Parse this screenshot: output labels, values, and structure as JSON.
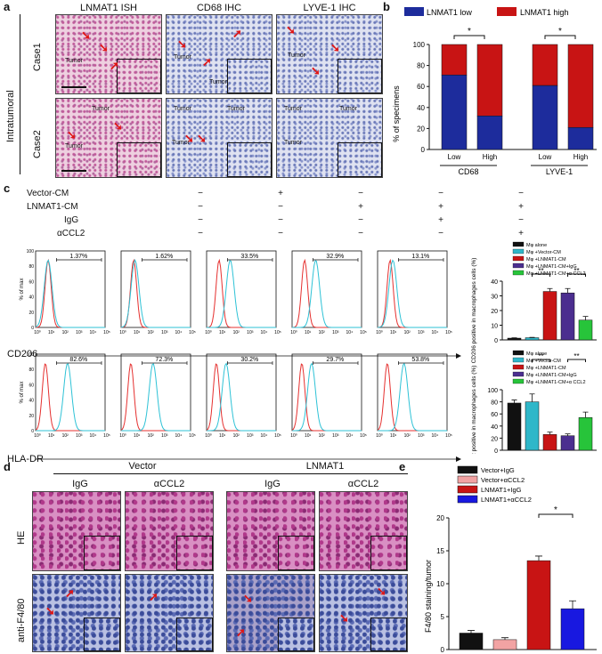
{
  "panel_labels": {
    "a": "a",
    "b": "b",
    "c": "c",
    "d": "d",
    "e": "e"
  },
  "panel_a": {
    "col_headers": [
      "LNMAT1 ISH",
      "CD68 IHC",
      "LYVE-1 IHC"
    ],
    "side_label": "Intratumoral",
    "rows": [
      "Case1",
      "Case2"
    ],
    "tumor_label": "Tumor"
  },
  "panel_b": {
    "legend": [
      "LNMAT1 low",
      "LNMAT1 high"
    ],
    "ylabel": "% of specimens",
    "yticks": [
      "0",
      "20",
      "40",
      "60",
      "80",
      "100"
    ],
    "xticks": [
      "Low",
      "High",
      "Low",
      "High"
    ],
    "groups": [
      "CD68",
      "LYVE-1"
    ],
    "sig": [
      "*",
      "*"
    ]
  },
  "panel_c": {
    "conditions": [
      "Vector-CM",
      "LNMAT1-CM",
      "IgG",
      "αCCL2"
    ],
    "signs": [
      [
        "−",
        "+",
        "−",
        "−",
        "−"
      ],
      [
        "−",
        "−",
        "+",
        "+",
        "+"
      ],
      [
        "−",
        "−",
        "−",
        "+",
        "−"
      ],
      [
        "−",
        "−",
        "−",
        "−",
        "+"
      ]
    ],
    "row1_label": "CD206",
    "row2_label": "HLA-DR",
    "pct_row1": [
      "1.37%",
      "1.62%",
      "33.5%",
      "32.9%",
      "13.1%"
    ],
    "pct_row2": [
      "82.6%",
      "72.3%",
      "30.2%",
      "29.7%",
      "53.8%"
    ],
    "hist_ylabel": "% of max",
    "hist_yticks": [
      "0",
      "20",
      "40",
      "60",
      "80",
      "100"
    ],
    "hist_xticks": [
      "10⁰",
      "10¹",
      "10²",
      "10³",
      "10⁴",
      "10⁵"
    ],
    "bar_legend": [
      "Mφ alone",
      "Mφ +Vector-CM",
      "Mφ +LNMAT1-CM",
      "Mφ +LNMAT1-CM+IgG",
      "Mφ +LNMAT1-CM+α CCL2"
    ],
    "bar1_ylabel": "CD206 positive in macrophages cells (%)",
    "bar2_ylabel": "HLA-DR positive in macrophages cells (%)",
    "bar1_yticks": [
      "0",
      "10",
      "20",
      "30",
      "40"
    ],
    "bar2_yticks": [
      "0",
      "20",
      "40",
      "60",
      "80",
      "100"
    ],
    "sig": [
      "**",
      "**"
    ]
  },
  "panel_d": {
    "group_headers": [
      "Vector",
      "LNMAT1"
    ],
    "sub_headers": [
      "IgG",
      "αCCL2",
      "IgG",
      "αCCL2"
    ],
    "row_labels": [
      "HE",
      "anti-F4/80"
    ]
  },
  "panel_e": {
    "legend": [
      "Vector+IgG",
      "Vector+αCCL2",
      "LNMAT1+IgG",
      "LNMAT1+αCCL2"
    ],
    "ylabel": "F4/80 staining/tumor",
    "yticks": [
      "0",
      "5",
      "10",
      "15",
      "20"
    ],
    "sig": "*"
  },
  "colors": {
    "blue": "#1d2c9c",
    "red": "#c81414",
    "black": "#111111",
    "cyan": "#2fb7c9",
    "green": "#27c43a",
    "pink": "#f2a3a3",
    "purple": "#4b2e8f",
    "hist_red": "#e5302f",
    "hist_cyan": "#2ec2d6"
  },
  "chart_data": [
    {
      "type": "bar",
      "name": "panel_b",
      "categories": [
        "CD68 Low",
        "CD68 High",
        "LYVE-1 Low",
        "LYVE-1 High"
      ],
      "series": [
        {
          "name": "LNMAT1 low",
          "values": [
            71,
            32,
            61,
            21
          ]
        },
        {
          "name": "LNMAT1 high",
          "values": [
            29,
            68,
            39,
            79
          ]
        }
      ],
      "ylabel": "% of specimens",
      "ylim": [
        0,
        100
      ],
      "stacked": true
    },
    {
      "type": "bar",
      "name": "panel_c_cd206",
      "categories": [
        "Mφ alone",
        "Mφ +Vector-CM",
        "Mφ +LNMAT1-CM",
        "Mφ +LNMAT1-CM+IgG",
        "Mφ +LNMAT1-CM+α CCL2"
      ],
      "values": [
        1.2,
        1.5,
        33,
        32,
        13.5
      ],
      "errors": [
        0.2,
        0.2,
        2,
        3,
        2.5
      ],
      "ylabel": "CD206 positive in macrophages cells (%)",
      "ylim": [
        0,
        40
      ]
    },
    {
      "type": "bar",
      "name": "panel_c_hladr",
      "categories": [
        "Mφ alone",
        "Mφ +Vector-CM",
        "Mφ +LNMAT1-CM",
        "Mφ +LNMAT1-CM+IgG",
        "Mφ +LNMAT1-CM+α CCL2"
      ],
      "values": [
        78,
        80,
        26,
        24,
        54
      ],
      "errors": [
        5,
        13,
        4,
        3,
        9
      ],
      "ylabel": "HLA-DR positive in macrophages cells (%)",
      "ylim": [
        0,
        100
      ]
    },
    {
      "type": "bar",
      "name": "panel_e",
      "categories": [
        "Vector+IgG",
        "Vector+αCCL2",
        "LNMAT1+IgG",
        "LNMAT1+αCCL2"
      ],
      "values": [
        2.5,
        1.5,
        13.5,
        6.2
      ],
      "errors": [
        0.4,
        0.3,
        0.7,
        1.2
      ],
      "ylabel": "F4/80 staining/tumor",
      "ylim": [
        0,
        20
      ]
    }
  ]
}
